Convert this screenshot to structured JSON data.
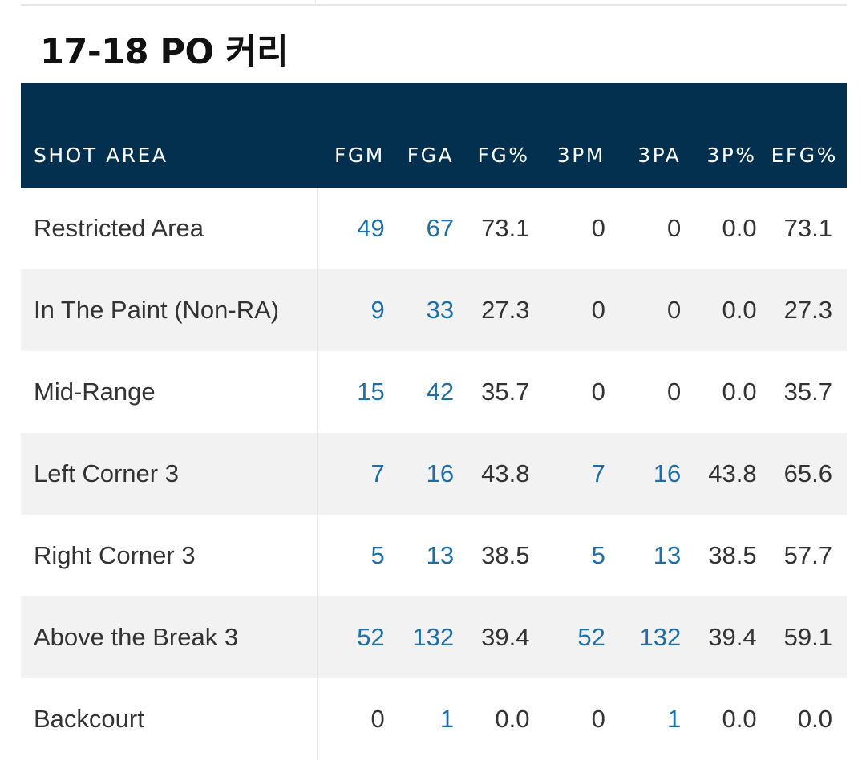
{
  "title": "17-18 PO 커리",
  "table": {
    "headers": [
      "SHOT AREA",
      "FGM",
      "FGA",
      "FG%",
      "3PM",
      "3PA",
      "3P%",
      "EFG%"
    ],
    "rows": [
      {
        "area": "Restricted Area",
        "fgm": "49",
        "fga": "67",
        "fg_pct": "73.1",
        "tpm": "0",
        "tpa": "0",
        "tp_pct": "0.0",
        "efg": "73.1"
      },
      {
        "area": "In The Paint (Non-RA)",
        "fgm": "9",
        "fga": "33",
        "fg_pct": "27.3",
        "tpm": "0",
        "tpa": "0",
        "tp_pct": "0.0",
        "efg": "27.3"
      },
      {
        "area": "Mid-Range",
        "fgm": "15",
        "fga": "42",
        "fg_pct": "35.7",
        "tpm": "0",
        "tpa": "0",
        "tp_pct": "0.0",
        "efg": "35.7"
      },
      {
        "area": "Left Corner 3",
        "fgm": "7",
        "fga": "16",
        "fg_pct": "43.8",
        "tpm": "7",
        "tpa": "16",
        "tp_pct": "43.8",
        "efg": "65.6"
      },
      {
        "area": "Right Corner 3",
        "fgm": "5",
        "fga": "13",
        "fg_pct": "38.5",
        "tpm": "5",
        "tpa": "13",
        "tp_pct": "38.5",
        "efg": "57.7"
      },
      {
        "area": "Above the Break 3",
        "fgm": "52",
        "fga": "132",
        "fg_pct": "39.4",
        "tpm": "52",
        "tpa": "132",
        "tp_pct": "39.4",
        "efg": "59.1"
      },
      {
        "area": "Backcourt",
        "fgm": "0",
        "fga": "1",
        "fg_pct": "0.0",
        "tpm": "0",
        "tpa": "1",
        "tp_pct": "0.0",
        "efg": "0.0"
      }
    ]
  },
  "colors": {
    "header_bg": "#02304e",
    "link": "#1d6fa5",
    "row_alt": "#f2f2f2"
  }
}
